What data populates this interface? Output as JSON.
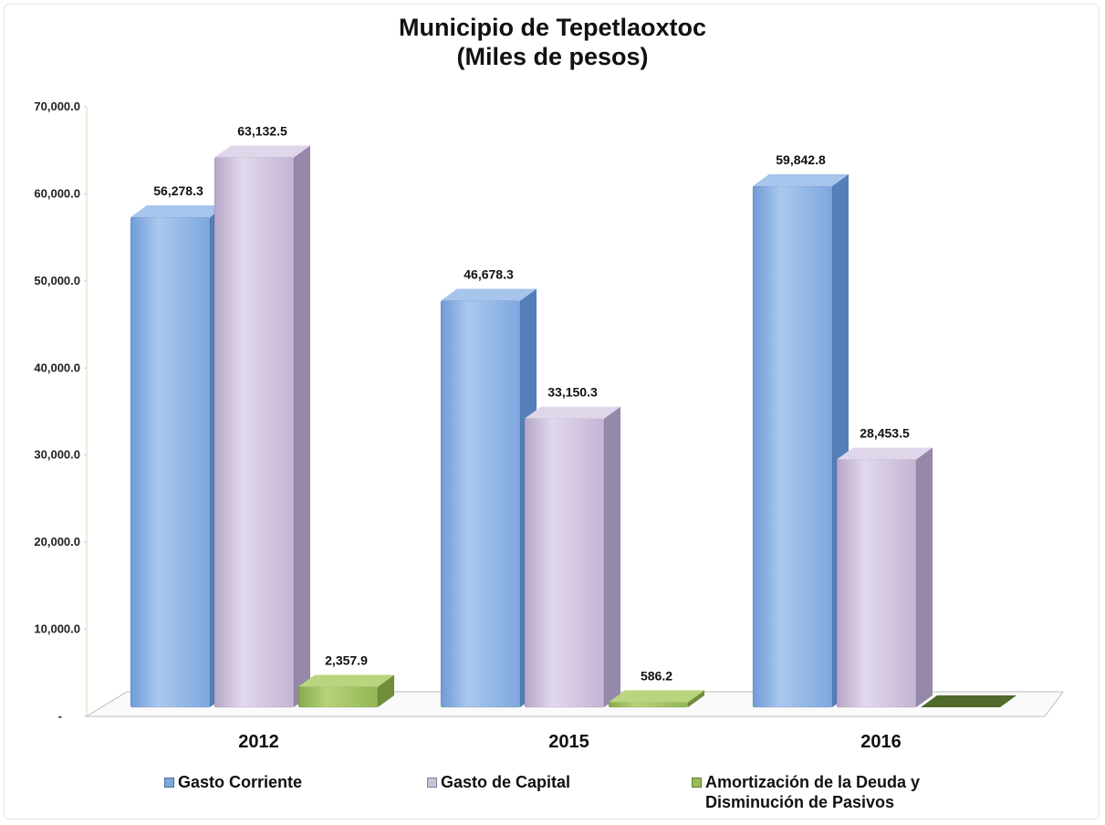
{
  "chart_data": {
    "type": "bar",
    "title_lines": [
      "Municipio de Tepetlaoxtoc",
      "(Miles de pesos)"
    ],
    "categories": [
      "2012",
      "2015",
      "2016"
    ],
    "series": [
      {
        "name": "Gasto Corriente",
        "values": [
          56278.3,
          46678.3,
          59842.8
        ],
        "labels": [
          "56,278.3",
          "46,678.3",
          "59,842.8"
        ],
        "color": "#8db4e2"
      },
      {
        "name": "Gasto de Capital",
        "values": [
          63132.5,
          33150.3,
          28453.5
        ],
        "labels": [
          "63,132.5",
          "33,150.3",
          "28,453.5"
        ],
        "color": "#ccc0da"
      },
      {
        "name": "Amortización de la Deuda y\nDisminución de Pasivos",
        "values": [
          2357.9,
          586.2,
          0
        ],
        "labels": [
          "2,357.9",
          "586.2",
          ""
        ],
        "color": "#9bbb59"
      }
    ],
    "y_ticks": [
      "-",
      "10,000.0",
      "20,000.0",
      "30,000.0",
      "40,000.0",
      "50,000.0",
      "60,000.0",
      "70,000.0"
    ],
    "ylim": [
      0,
      70000
    ],
    "grid": false,
    "legend_position": "bottom",
    "three_d": true
  }
}
